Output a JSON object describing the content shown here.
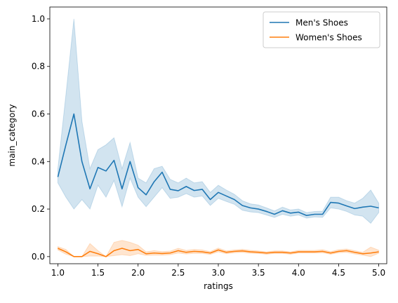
{
  "chart_data": {
    "type": "line",
    "title": "",
    "xlabel": "ratings",
    "ylabel": "main_category",
    "xlim": [
      0.9,
      5.1
    ],
    "ylim": [
      -0.03,
      1.05
    ],
    "xticks": [
      1.0,
      1.5,
      2.0,
      2.5,
      3.0,
      3.5,
      4.0,
      4.5,
      5.0
    ],
    "xtick_labels": [
      "1.0",
      "1.5",
      "2.0",
      "2.5",
      "3.0",
      "3.5",
      "4.0",
      "4.5",
      "5.0"
    ],
    "yticks": [
      0.0,
      0.2,
      0.4,
      0.6,
      0.8,
      1.0
    ],
    "ytick_labels": [
      "0.0",
      "0.2",
      "0.4",
      "0.6",
      "0.8",
      "1.0"
    ],
    "grid": false,
    "legend": "upper-right",
    "x": [
      1.0,
      1.1,
      1.2,
      1.3,
      1.4,
      1.5,
      1.6,
      1.7,
      1.8,
      1.9,
      2.0,
      2.1,
      2.2,
      2.3,
      2.4,
      2.5,
      2.6,
      2.7,
      2.8,
      2.9,
      3.0,
      3.1,
      3.2,
      3.3,
      3.4,
      3.5,
      3.6,
      3.7,
      3.8,
      3.9,
      4.0,
      4.1,
      4.2,
      4.3,
      4.4,
      4.5,
      4.6,
      4.7,
      4.8,
      4.9,
      5.0
    ],
    "series": [
      {
        "name": "Men's Shoes",
        "color": "#1f77b4",
        "values": [
          0.335,
          0.47,
          0.6,
          0.4,
          0.285,
          0.375,
          0.36,
          0.405,
          0.285,
          0.4,
          0.29,
          0.26,
          0.315,
          0.355,
          0.283,
          0.277,
          0.295,
          0.278,
          0.283,
          0.24,
          0.27,
          0.255,
          0.24,
          0.215,
          0.205,
          0.2,
          0.19,
          0.178,
          0.193,
          0.183,
          0.187,
          0.173,
          0.178,
          0.178,
          0.228,
          0.225,
          0.213,
          0.202,
          0.208,
          0.212,
          0.205
        ],
        "ci_lower": [
          0.31,
          0.25,
          0.2,
          0.24,
          0.2,
          0.3,
          0.25,
          0.32,
          0.21,
          0.33,
          0.25,
          0.21,
          0.25,
          0.29,
          0.245,
          0.25,
          0.265,
          0.25,
          0.255,
          0.215,
          0.245,
          0.232,
          0.22,
          0.195,
          0.188,
          0.185,
          0.175,
          0.165,
          0.178,
          0.17,
          0.175,
          0.162,
          0.167,
          0.165,
          0.205,
          0.2,
          0.19,
          0.175,
          0.17,
          0.14,
          0.185
        ],
        "ci_upper": [
          0.37,
          0.68,
          1.0,
          0.57,
          0.37,
          0.45,
          0.47,
          0.5,
          0.37,
          0.48,
          0.33,
          0.31,
          0.37,
          0.38,
          0.325,
          0.31,
          0.33,
          0.31,
          0.315,
          0.27,
          0.3,
          0.28,
          0.262,
          0.235,
          0.222,
          0.217,
          0.205,
          0.192,
          0.208,
          0.196,
          0.2,
          0.185,
          0.19,
          0.191,
          0.25,
          0.25,
          0.235,
          0.225,
          0.245,
          0.28,
          0.225
        ]
      },
      {
        "name": "Women's Shoes",
        "color": "#ff7f0e",
        "values": [
          0.035,
          0.02,
          0.0,
          0.0,
          0.022,
          0.012,
          0.0,
          0.025,
          0.035,
          0.025,
          0.03,
          0.012,
          0.015,
          0.013,
          0.015,
          0.025,
          0.018,
          0.022,
          0.02,
          0.015,
          0.028,
          0.018,
          0.022,
          0.024,
          0.02,
          0.018,
          0.015,
          0.018,
          0.018,
          0.015,
          0.02,
          0.02,
          0.02,
          0.022,
          0.015,
          0.022,
          0.025,
          0.018,
          0.012,
          0.015,
          0.02
        ],
        "ci_lower": [
          0.028,
          0.01,
          0.0,
          0.0,
          0.002,
          0.002,
          0.0,
          0.004,
          0.008,
          0.004,
          0.012,
          0.005,
          0.006,
          0.006,
          0.008,
          0.015,
          0.011,
          0.014,
          0.013,
          0.009,
          0.02,
          0.012,
          0.016,
          0.018,
          0.014,
          0.013,
          0.01,
          0.013,
          0.013,
          0.01,
          0.015,
          0.015,
          0.015,
          0.016,
          0.01,
          0.016,
          0.018,
          0.011,
          0.006,
          0.0,
          0.014
        ],
        "ci_upper": [
          0.042,
          0.03,
          0.0,
          0.0,
          0.055,
          0.025,
          0.0,
          0.06,
          0.068,
          0.06,
          0.048,
          0.02,
          0.025,
          0.021,
          0.023,
          0.035,
          0.026,
          0.03,
          0.028,
          0.021,
          0.036,
          0.024,
          0.028,
          0.031,
          0.026,
          0.024,
          0.02,
          0.024,
          0.024,
          0.02,
          0.026,
          0.026,
          0.026,
          0.029,
          0.021,
          0.029,
          0.032,
          0.025,
          0.018,
          0.04,
          0.027
        ]
      }
    ]
  }
}
